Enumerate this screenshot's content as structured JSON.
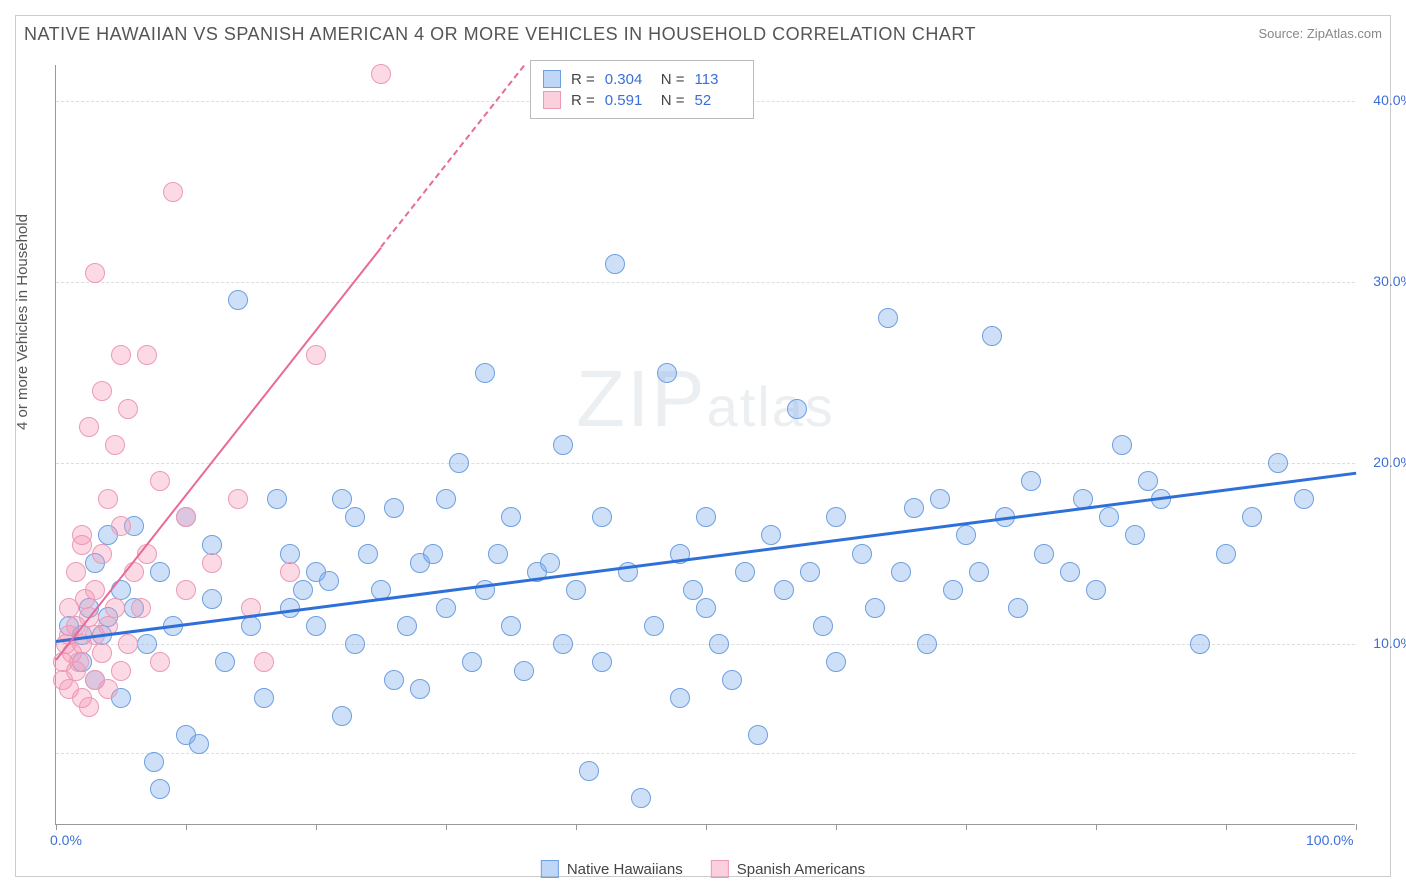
{
  "title": "NATIVE HAWAIIAN VS SPANISH AMERICAN 4 OR MORE VEHICLES IN HOUSEHOLD CORRELATION CHART",
  "source_prefix": "Source: ",
  "source": "ZipAtlas.com",
  "watermark_a": "ZIP",
  "watermark_b": "atlas",
  "chart": {
    "type": "scatter",
    "ylabel": "4 or more Vehicles in Household",
    "xlim": [
      0,
      100
    ],
    "ylim": [
      0,
      42
    ],
    "x_tick_labels": {
      "0": "0.0%",
      "100": "100.0%"
    },
    "x_tick_positions": [
      0,
      10,
      20,
      30,
      40,
      50,
      60,
      70,
      80,
      90,
      100
    ],
    "y_tick_labels": {
      "10": "10.0%",
      "20": "20.0%",
      "30": "30.0%",
      "40": "40.0%"
    },
    "y_grid_positions": [
      4,
      10,
      20,
      30,
      40
    ],
    "background_color": "#ffffff",
    "grid_color": "#dddddd",
    "axis_color": "#999999",
    "tick_label_color": "#3b6fd8",
    "label_fontsize": 15,
    "title_fontsize": 18,
    "title_color": "#555555",
    "point_radius": 10,
    "point_border_width": 1.5,
    "series": [
      {
        "name": "Native Hawaiians",
        "fill_color": "rgba(115,165,235,0.35)",
        "stroke_color": "#6f9fe0",
        "trend_color": "#2f6fd8",
        "trend_width": 3,
        "trend_dash": "solid",
        "R": "0.304",
        "N": "113",
        "trend": {
          "x1": 0,
          "y1": 10.2,
          "x2": 100,
          "y2": 19.5
        },
        "points": [
          [
            1,
            11
          ],
          [
            2,
            9
          ],
          [
            2,
            10.5
          ],
          [
            2.5,
            12
          ],
          [
            3,
            14.5
          ],
          [
            3,
            8
          ],
          [
            3.5,
            10.5
          ],
          [
            4,
            16
          ],
          [
            4,
            11.5
          ],
          [
            5,
            13
          ],
          [
            5,
            7
          ],
          [
            6,
            16.5
          ],
          [
            6,
            12
          ],
          [
            7,
            10
          ],
          [
            7.5,
            3.5
          ],
          [
            8,
            2
          ],
          [
            8,
            14
          ],
          [
            9,
            11
          ],
          [
            10,
            5
          ],
          [
            10,
            17
          ],
          [
            11,
            4.5
          ],
          [
            12,
            12.5
          ],
          [
            12,
            15.5
          ],
          [
            13,
            9
          ],
          [
            14,
            29
          ],
          [
            15,
            11
          ],
          [
            16,
            7
          ],
          [
            17,
            18
          ],
          [
            18,
            12
          ],
          [
            18,
            15
          ],
          [
            19,
            13
          ],
          [
            20,
            11
          ],
          [
            20,
            14
          ],
          [
            21,
            13.5
          ],
          [
            22,
            18
          ],
          [
            22,
            6
          ],
          [
            23,
            10
          ],
          [
            23,
            17
          ],
          [
            24,
            15
          ],
          [
            25,
            13
          ],
          [
            26,
            8
          ],
          [
            26,
            17.5
          ],
          [
            27,
            11
          ],
          [
            28,
            14.5
          ],
          [
            28,
            7.5
          ],
          [
            29,
            15
          ],
          [
            30,
            12
          ],
          [
            30,
            18
          ],
          [
            31,
            20
          ],
          [
            32,
            9
          ],
          [
            33,
            25
          ],
          [
            33,
            13
          ],
          [
            34,
            15
          ],
          [
            35,
            11
          ],
          [
            35,
            17
          ],
          [
            36,
            8.5
          ],
          [
            37,
            14
          ],
          [
            38,
            14.5
          ],
          [
            39,
            10
          ],
          [
            39,
            21
          ],
          [
            40,
            13
          ],
          [
            41,
            3
          ],
          [
            42,
            9
          ],
          [
            42,
            17
          ],
          [
            43,
            31
          ],
          [
            44,
            14
          ],
          [
            45,
            1.5
          ],
          [
            46,
            11
          ],
          [
            47,
            25
          ],
          [
            48,
            7
          ],
          [
            48,
            15
          ],
          [
            49,
            13
          ],
          [
            50,
            12
          ],
          [
            50,
            17
          ],
          [
            51,
            10
          ],
          [
            52,
            8
          ],
          [
            53,
            14
          ],
          [
            54,
            5
          ],
          [
            55,
            16
          ],
          [
            56,
            13
          ],
          [
            57,
            23
          ],
          [
            58,
            14
          ],
          [
            59,
            11
          ],
          [
            60,
            17
          ],
          [
            60,
            9
          ],
          [
            62,
            15
          ],
          [
            63,
            12
          ],
          [
            64,
            28
          ],
          [
            65,
            14
          ],
          [
            66,
            17.5
          ],
          [
            67,
            10
          ],
          [
            68,
            18
          ],
          [
            69,
            13
          ],
          [
            70,
            16
          ],
          [
            71,
            14
          ],
          [
            72,
            27
          ],
          [
            73,
            17
          ],
          [
            74,
            12
          ],
          [
            75,
            19
          ],
          [
            76,
            15
          ],
          [
            78,
            14
          ],
          [
            79,
            18
          ],
          [
            80,
            13
          ],
          [
            81,
            17
          ],
          [
            82,
            21
          ],
          [
            83,
            16
          ],
          [
            84,
            19
          ],
          [
            85,
            18
          ],
          [
            88,
            10
          ],
          [
            90,
            15
          ],
          [
            92,
            17
          ],
          [
            94,
            20
          ],
          [
            96,
            18
          ]
        ]
      },
      {
        "name": "Spanish Americans",
        "fill_color": "rgba(245,150,180,0.35)",
        "stroke_color": "#ec9ab5",
        "trend_color": "#e86a9a",
        "trend_width": 2.5,
        "trend_dash_solid_until_x": 25,
        "trend_dash": "dashed",
        "R": "0.591",
        "N": "52",
        "trend": {
          "x1": 0,
          "y1": 9.2,
          "x2": 36,
          "y2": 42
        },
        "points": [
          [
            0.5,
            8
          ],
          [
            0.5,
            9
          ],
          [
            0.8,
            10
          ],
          [
            1,
            7.5
          ],
          [
            1,
            10.5
          ],
          [
            1,
            12
          ],
          [
            1.2,
            9.5
          ],
          [
            1.5,
            8.5
          ],
          [
            1.5,
            11
          ],
          [
            1.5,
            14
          ],
          [
            1.8,
            9
          ],
          [
            2,
            7
          ],
          [
            2,
            10
          ],
          [
            2,
            15.5
          ],
          [
            2,
            16
          ],
          [
            2.2,
            12.5
          ],
          [
            2.5,
            6.5
          ],
          [
            2.5,
            11.5
          ],
          [
            2.5,
            22
          ],
          [
            3,
            8
          ],
          [
            3,
            10.5
          ],
          [
            3,
            13
          ],
          [
            3,
            30.5
          ],
          [
            3.5,
            9.5
          ],
          [
            3.5,
            15
          ],
          [
            3.5,
            24
          ],
          [
            4,
            7.5
          ],
          [
            4,
            11
          ],
          [
            4,
            18
          ],
          [
            4.5,
            12
          ],
          [
            4.5,
            21
          ],
          [
            5,
            8.5
          ],
          [
            5,
            16.5
          ],
          [
            5,
            26
          ],
          [
            5.5,
            10
          ],
          [
            5.5,
            23
          ],
          [
            6,
            14
          ],
          [
            6.5,
            12
          ],
          [
            7,
            26
          ],
          [
            7,
            15
          ],
          [
            8,
            9
          ],
          [
            8,
            19
          ],
          [
            9,
            35
          ],
          [
            10,
            13
          ],
          [
            10,
            17
          ],
          [
            12,
            14.5
          ],
          [
            14,
            18
          ],
          [
            15,
            12
          ],
          [
            16,
            9
          ],
          [
            18,
            14
          ],
          [
            20,
            26
          ],
          [
            25,
            41.5
          ]
        ]
      }
    ]
  },
  "legend": {
    "items": [
      {
        "label": "Native Hawaiians",
        "fill": "rgba(115,165,235,0.45)",
        "stroke": "#6f9fe0"
      },
      {
        "label": "Spanish Americans",
        "fill": "rgba(245,150,180,0.45)",
        "stroke": "#ec9ab5"
      }
    ]
  },
  "stats_box": {
    "rows": [
      {
        "swatch_fill": "rgba(115,165,235,0.45)",
        "swatch_stroke": "#6f9fe0",
        "R_label": "R =",
        "R": "0.304",
        "N_label": "N =",
        "N": "113"
      },
      {
        "swatch_fill": "rgba(245,150,180,0.45)",
        "swatch_stroke": "#ec9ab5",
        "R_label": "R =",
        "R": "0.591",
        "N_label": "N =",
        "N": "52"
      }
    ]
  }
}
